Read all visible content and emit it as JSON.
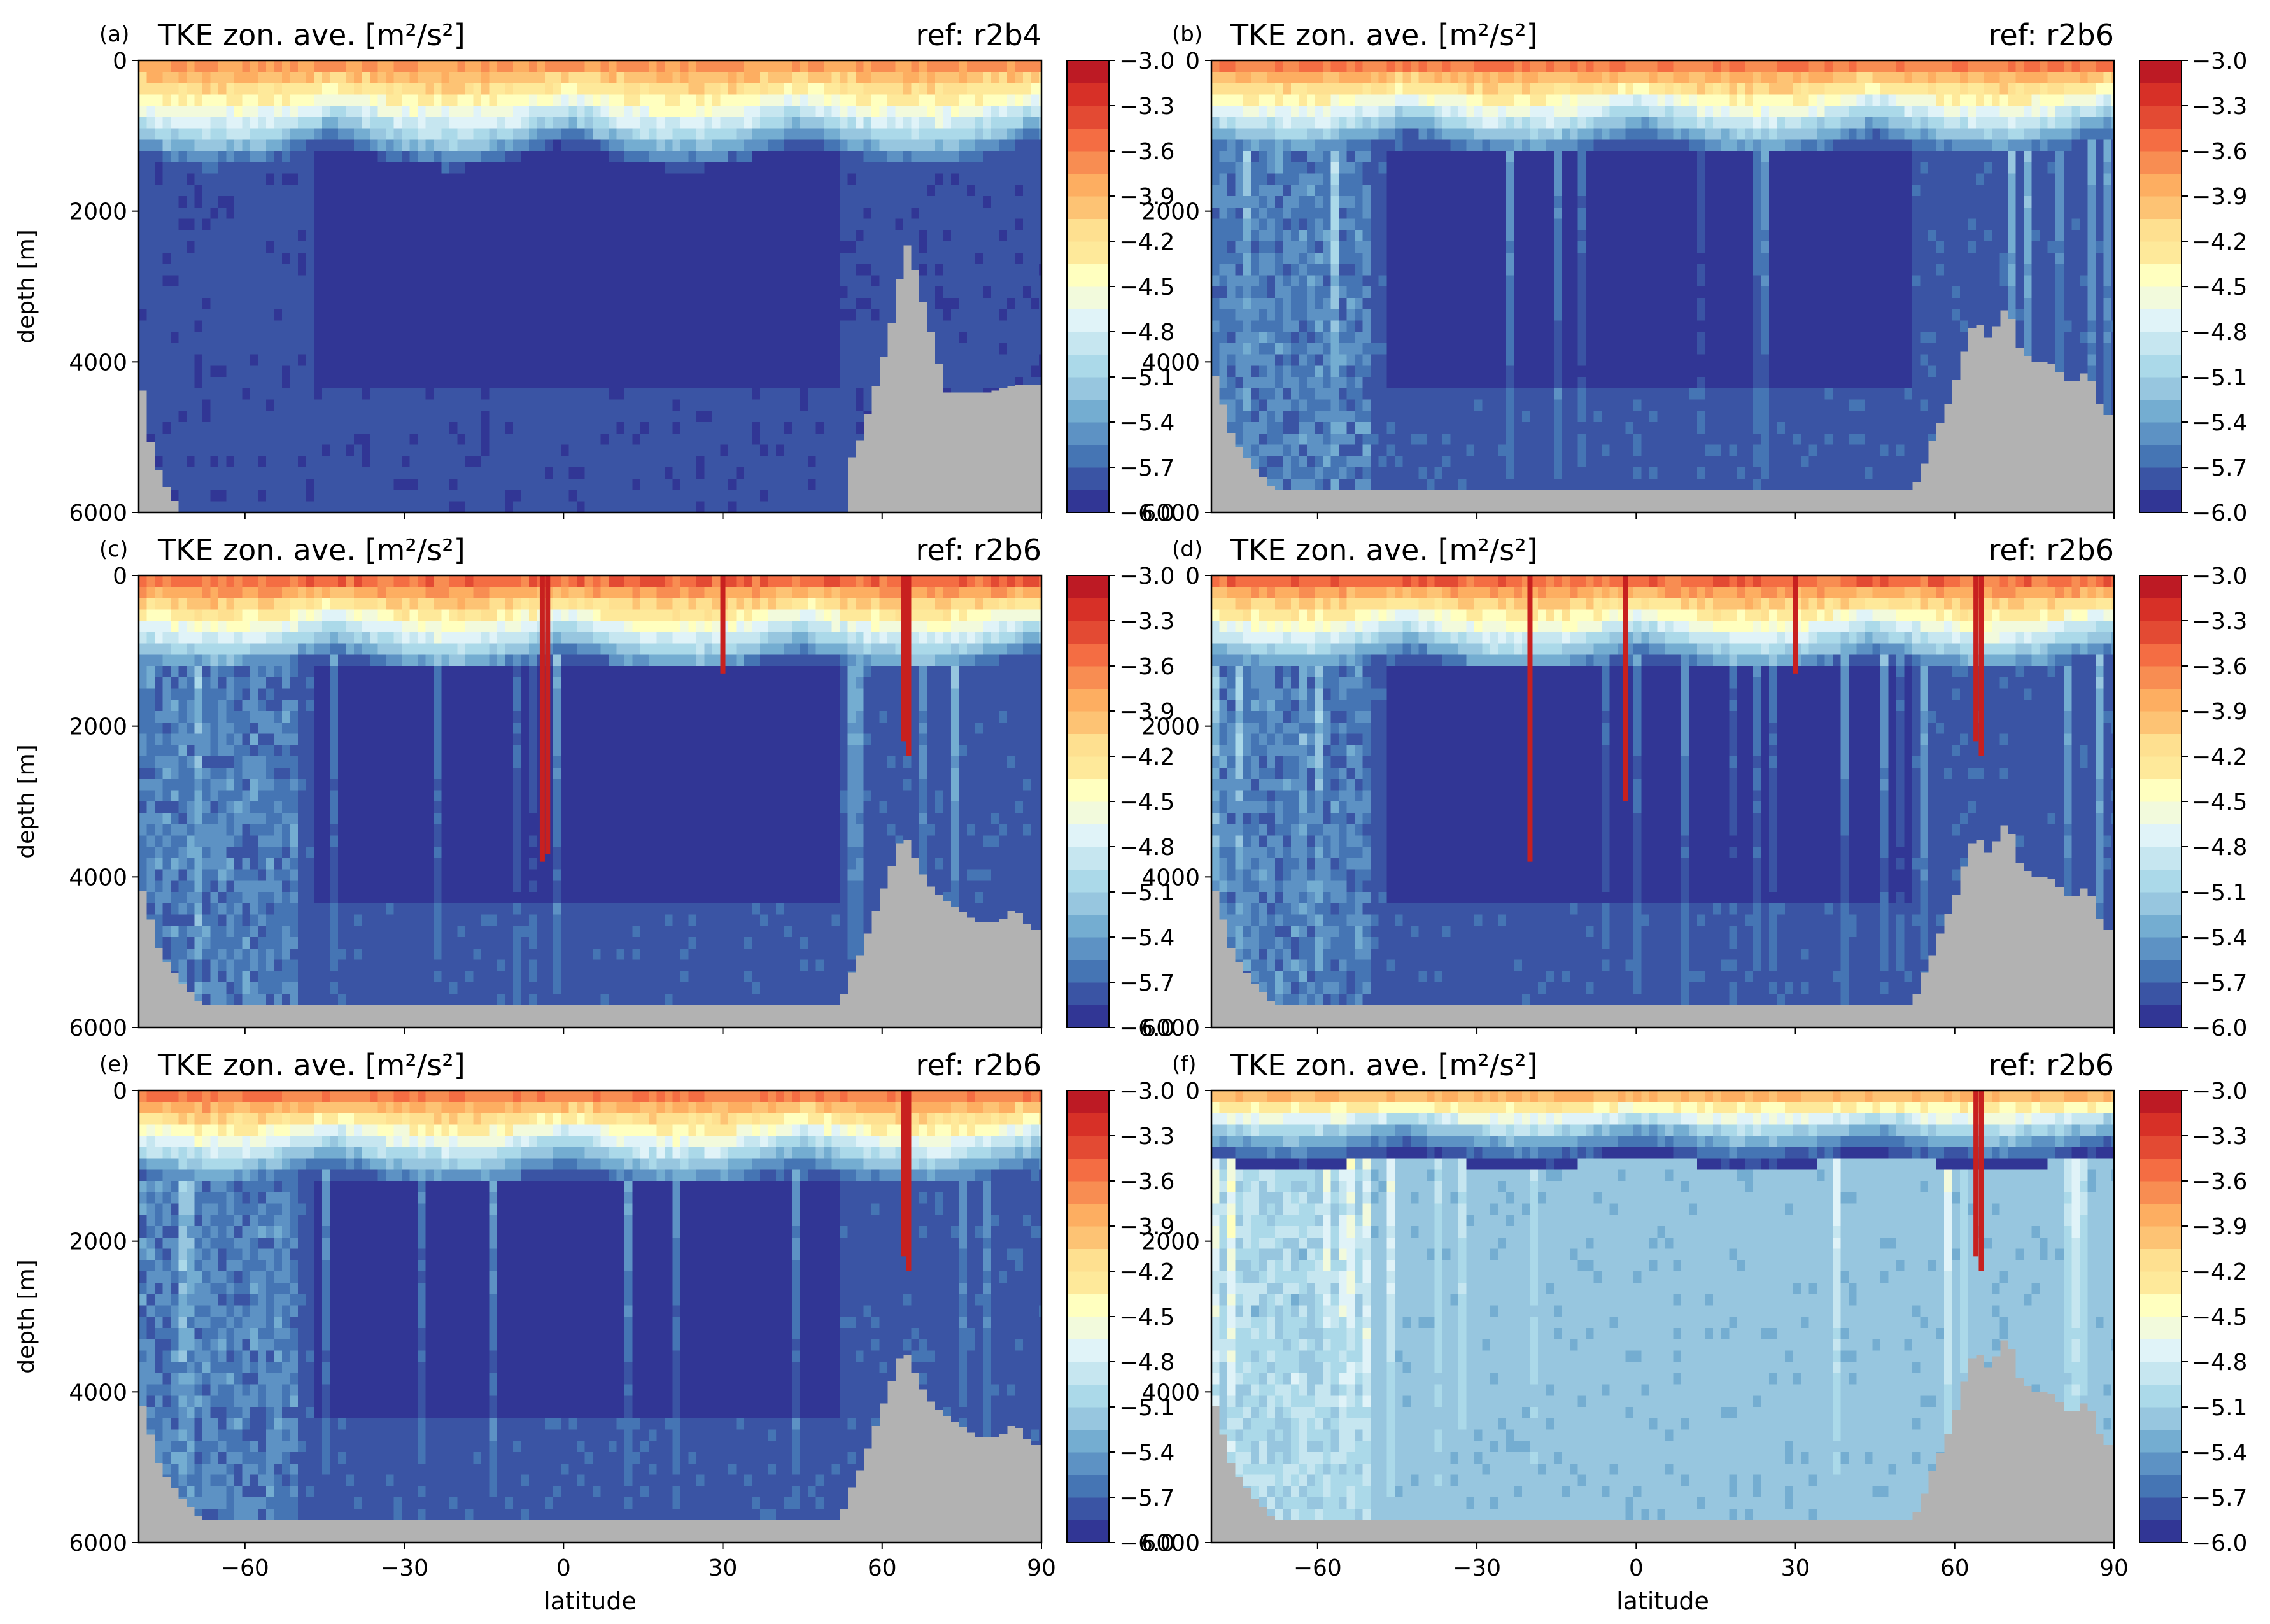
{
  "figure": {
    "colorbar_ticks": [
      "−3.0",
      "−3.3",
      "−3.6",
      "−3.9",
      "−4.2",
      "−4.5",
      "−4.8",
      "−5.1",
      "−5.4",
      "−5.7",
      "−6.0"
    ],
    "colormap": [
      "#313695",
      "#3a54a4",
      "#4575b4",
      "#5d92c4",
      "#74add1",
      "#97c6df",
      "#abd9e9",
      "#c6e6f0",
      "#e0f3f8",
      "#f2fadc",
      "#ffffbf",
      "#fee99a",
      "#fee090",
      "#fdc374",
      "#fdae61",
      "#f88d52",
      "#f46d43",
      "#e34a33",
      "#d73027",
      "#bd1a24"
    ],
    "land_color": "#b2b2b2",
    "x_ticks": [
      "−60",
      "−30",
      "0",
      "30",
      "60",
      "90"
    ],
    "y_ticks": [
      "0",
      "2000",
      "4000",
      "6000"
    ]
  },
  "chart_data": [
    {
      "type": "heatmap",
      "panel": "(a)",
      "title": "TKE zon. ave. [m²/s²]",
      "ref": "ref: r2b4",
      "xlabel": "",
      "ylabel": "depth [m]",
      "xlim": [
        -80,
        90
      ],
      "ylim": [
        6000,
        0
      ],
      "clim": [
        -6.0,
        -3.0
      ],
      "field": {
        "background": -5.8,
        "core": -5.95,
        "surface": -3.6,
        "mixed_layer_depth_m": 600,
        "vertical_streaks": false
      },
      "bathymetry_m": [
        [
          -80,
          4000
        ],
        [
          -78,
          5000
        ],
        [
          -76,
          5500
        ],
        [
          -72,
          6000
        ],
        [
          -60,
          6000
        ],
        [
          -50,
          6000
        ],
        [
          -40,
          6000
        ],
        [
          -30,
          6000
        ],
        [
          0,
          6000
        ],
        [
          30,
          6000
        ],
        [
          53,
          6000
        ],
        [
          54,
          5300
        ],
        [
          56,
          5000
        ],
        [
          58,
          4500
        ],
        [
          60,
          4000
        ],
        [
          62,
          3400
        ],
        [
          64,
          2600
        ],
        [
          65,
          2400
        ],
        [
          67,
          3000
        ],
        [
          70,
          3800
        ],
        [
          72,
          4400
        ],
        [
          76,
          4400
        ],
        [
          80,
          4400
        ],
        [
          85,
          4300
        ],
        [
          88,
          4300
        ],
        [
          90,
          4300
        ]
      ]
    },
    {
      "type": "heatmap",
      "panel": "(b)",
      "title": "TKE zon. ave. [m²/s²]",
      "ref": "ref: r2b6",
      "xlabel": "",
      "ylabel": "",
      "xlim": [
        -80,
        90
      ],
      "ylim": [
        6000,
        0
      ],
      "clim": [
        -6.0,
        -3.0
      ],
      "field": {
        "background": -5.75,
        "core": -5.95,
        "surface": -3.5,
        "mixed_layer_depth_m": 500,
        "vertical_streaks": true
      },
      "bathymetry_m": [
        [
          -80,
          4000
        ],
        [
          -78,
          4500
        ],
        [
          -76,
          5000
        ],
        [
          -72,
          5400
        ],
        [
          -68,
          5700
        ],
        [
          -60,
          5700
        ],
        [
          -30,
          5700
        ],
        [
          0,
          5700
        ],
        [
          30,
          5700
        ],
        [
          52,
          5700
        ],
        [
          54,
          5400
        ],
        [
          56,
          5000
        ],
        [
          58,
          4700
        ],
        [
          60,
          4300
        ],
        [
          62,
          3800
        ],
        [
          64,
          3400
        ],
        [
          66,
          3700
        ],
        [
          68,
          3500
        ],
        [
          70,
          3200
        ],
        [
          72,
          3800
        ],
        [
          75,
          4000
        ],
        [
          78,
          4000
        ],
        [
          82,
          4300
        ],
        [
          85,
          4100
        ],
        [
          88,
          4700
        ],
        [
          90,
          4700
        ]
      ]
    },
    {
      "type": "heatmap",
      "panel": "(c)",
      "title": "TKE zon. ave. [m²/s²]",
      "ref": "ref: r2b6",
      "xlabel": "",
      "ylabel": "depth [m]",
      "xlim": [
        -80,
        90
      ],
      "ylim": [
        6000,
        0
      ],
      "clim": [
        -6.0,
        -3.0
      ],
      "field": {
        "background": -5.75,
        "core": -5.95,
        "surface": -3.4,
        "mixed_layer_depth_m": 500,
        "vertical_streaks": true
      },
      "hot_columns": [
        [
          -4,
          3800
        ],
        [
          -3,
          3700
        ],
        [
          30,
          1300
        ],
        [
          64,
          2200
        ],
        [
          65,
          2400
        ]
      ],
      "bathymetry_m": [
        [
          -80,
          4000
        ],
        [
          -78,
          4500
        ],
        [
          -76,
          5000
        ],
        [
          -72,
          5400
        ],
        [
          -68,
          5700
        ],
        [
          -60,
          5700
        ],
        [
          -30,
          5700
        ],
        [
          0,
          5700
        ],
        [
          30,
          5700
        ],
        [
          52,
          5700
        ],
        [
          54,
          5300
        ],
        [
          56,
          5000
        ],
        [
          58,
          4600
        ],
        [
          60,
          4200
        ],
        [
          62,
          3800
        ],
        [
          64,
          3400
        ],
        [
          66,
          3700
        ],
        [
          68,
          4000
        ],
        [
          70,
          4200
        ],
        [
          74,
          4400
        ],
        [
          78,
          4600
        ],
        [
          82,
          4600
        ],
        [
          85,
          4400
        ],
        [
          88,
          4700
        ],
        [
          90,
          4700
        ]
      ]
    },
    {
      "type": "heatmap",
      "panel": "(d)",
      "title": "TKE zon. ave. [m²/s²]",
      "ref": "ref: r2b6",
      "xlabel": "",
      "ylabel": "",
      "xlim": [
        -80,
        90
      ],
      "ylim": [
        6000,
        0
      ],
      "clim": [
        -6.0,
        -3.0
      ],
      "field": {
        "background": -5.75,
        "core": -5.95,
        "surface": -3.4,
        "mixed_layer_depth_m": 500,
        "vertical_streaks": true
      },
      "hot_columns": [
        [
          -20,
          3800
        ],
        [
          -2,
          3000
        ],
        [
          30,
          1300
        ],
        [
          64,
          2200
        ],
        [
          65,
          2400
        ]
      ],
      "bathymetry_m": [
        [
          -80,
          4000
        ],
        [
          -78,
          4500
        ],
        [
          -76,
          5000
        ],
        [
          -72,
          5400
        ],
        [
          -68,
          5700
        ],
        [
          -60,
          5700
        ],
        [
          -30,
          5700
        ],
        [
          0,
          5700
        ],
        [
          30,
          5700
        ],
        [
          52,
          5700
        ],
        [
          54,
          5300
        ],
        [
          56,
          5000
        ],
        [
          58,
          4600
        ],
        [
          60,
          4300
        ],
        [
          62,
          3800
        ],
        [
          64,
          3400
        ],
        [
          66,
          3700
        ],
        [
          68,
          3500
        ],
        [
          70,
          3200
        ],
        [
          72,
          3800
        ],
        [
          75,
          4000
        ],
        [
          78,
          4000
        ],
        [
          82,
          4300
        ],
        [
          85,
          4100
        ],
        [
          88,
          4700
        ],
        [
          90,
          4700
        ]
      ]
    },
    {
      "type": "heatmap",
      "panel": "(e)",
      "title": "TKE zon. ave. [m²/s²]",
      "ref": "ref: r2b6",
      "xlabel": "latitude",
      "ylabel": "depth [m]",
      "xlim": [
        -80,
        90
      ],
      "ylim": [
        6000,
        0
      ],
      "clim": [
        -6.0,
        -3.0
      ],
      "field": {
        "background": -5.75,
        "core": -5.95,
        "surface": -3.5,
        "mixed_layer_depth_m": 500,
        "vertical_streaks": true
      },
      "hot_columns": [
        [
          64,
          2200
        ],
        [
          65,
          2400
        ]
      ],
      "bathymetry_m": [
        [
          -80,
          4000
        ],
        [
          -78,
          4500
        ],
        [
          -76,
          5000
        ],
        [
          -72,
          5400
        ],
        [
          -68,
          5700
        ],
        [
          -60,
          5700
        ],
        [
          -30,
          5700
        ],
        [
          0,
          5700
        ],
        [
          30,
          5700
        ],
        [
          52,
          5700
        ],
        [
          54,
          5300
        ],
        [
          56,
          5000
        ],
        [
          58,
          4600
        ],
        [
          60,
          4200
        ],
        [
          62,
          3800
        ],
        [
          64,
          3400
        ],
        [
          66,
          3700
        ],
        [
          68,
          4000
        ],
        [
          70,
          4200
        ],
        [
          74,
          4400
        ],
        [
          78,
          4600
        ],
        [
          82,
          4600
        ],
        [
          85,
          4400
        ],
        [
          88,
          4700
        ],
        [
          90,
          4700
        ]
      ]
    },
    {
      "type": "heatmap",
      "panel": "(f)",
      "title": "TKE zon. ave. [m²/s²]",
      "ref": "ref: r2b6",
      "xlabel": "latitude",
      "ylabel": "",
      "xlim": [
        -80,
        90
      ],
      "ylim": [
        6000,
        0
      ],
      "clim": [
        -6.0,
        -3.0
      ],
      "field": {
        "background": -5.2,
        "core": -5.2,
        "surface": -3.8,
        "mixed_layer_depth_m": 350,
        "vertical_streaks": true
      },
      "hot_columns": [
        [
          64,
          2200
        ],
        [
          65,
          2400
        ]
      ],
      "bathymetry_m": [
        [
          -80,
          4000
        ],
        [
          -78,
          4500
        ],
        [
          -76,
          5000
        ],
        [
          -72,
          5400
        ],
        [
          -68,
          5700
        ],
        [
          -60,
          5700
        ],
        [
          -30,
          5700
        ],
        [
          0,
          5700
        ],
        [
          30,
          5700
        ],
        [
          52,
          5700
        ],
        [
          54,
          5400
        ],
        [
          56,
          5000
        ],
        [
          58,
          4700
        ],
        [
          60,
          4300
        ],
        [
          62,
          3800
        ],
        [
          64,
          3400
        ],
        [
          66,
          3700
        ],
        [
          68,
          3500
        ],
        [
          70,
          3200
        ],
        [
          72,
          3800
        ],
        [
          75,
          4000
        ],
        [
          78,
          4000
        ],
        [
          82,
          4300
        ],
        [
          85,
          4100
        ],
        [
          88,
          4700
        ],
        [
          90,
          4700
        ]
      ]
    }
  ]
}
